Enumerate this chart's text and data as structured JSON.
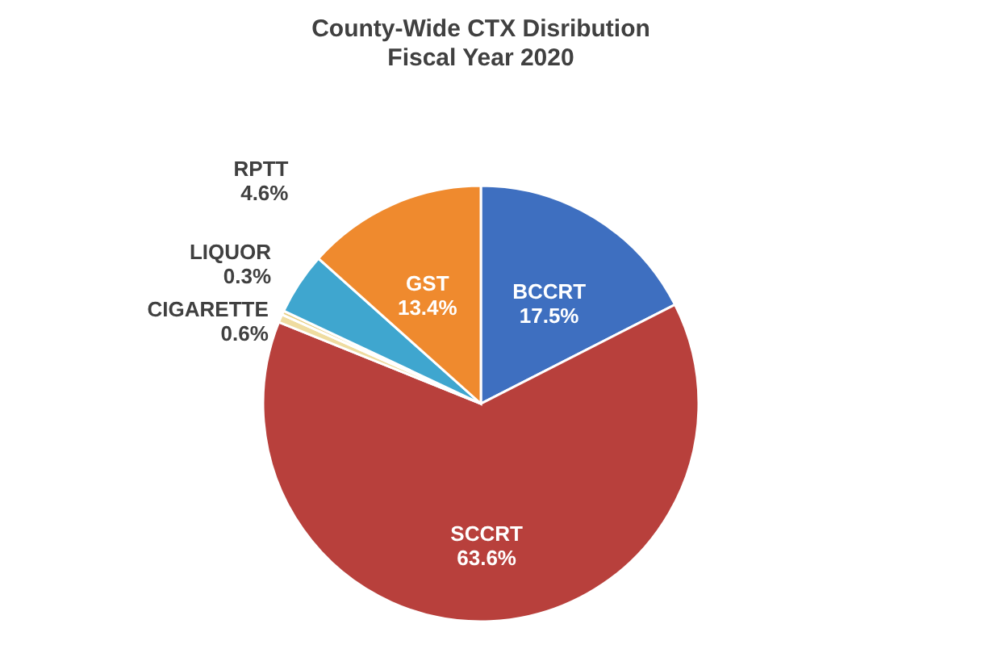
{
  "chart_data": {
    "type": "pie",
    "title": "County-Wide CTX Disribution",
    "subtitle": "Fiscal Year 2020",
    "categories": [
      "BCCRT",
      "SCCRT",
      "CIGARETTE",
      "LIQUOR",
      "RPTT",
      "GST"
    ],
    "values": [
      17.5,
      63.6,
      0.6,
      0.3,
      4.6,
      13.4
    ],
    "value_labels": [
      "17.5%",
      "63.6%",
      "0.6%",
      "0.3%",
      "4.6%",
      "13.4%"
    ],
    "colors": [
      "#3e6fc0",
      "#b8403c",
      "#efdca0",
      "#e8cf86",
      "#3fa6cf",
      "#ef8a2e"
    ],
    "legend": false
  }
}
